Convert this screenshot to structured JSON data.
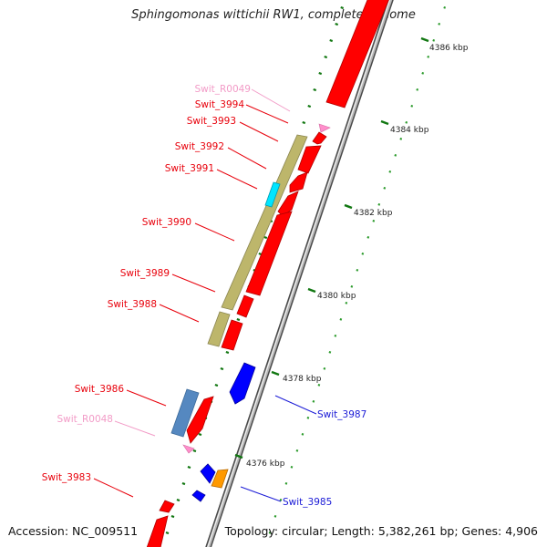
{
  "title": "Sphingomonas wittichii RW1, complete genome",
  "footer": {
    "accession_label": "Accession:",
    "accession": "NC_009511",
    "topology_text": "Topology: circular; Length: 5,382,261 bp; Genes: 4,906"
  },
  "scale_labels": [
    "4386 kbp",
    "4384 kbp",
    "4382 kbp",
    "4380 kbp",
    "4378 kbp",
    "4376 kbp"
  ],
  "gene_labels": [
    {
      "name": "Swit_R0049",
      "color": "#f29bc7"
    },
    {
      "name": "Swit_3994",
      "color": "#e8000b"
    },
    {
      "name": "Swit_3993",
      "color": "#e8000b"
    },
    {
      "name": "Swit_3992",
      "color": "#e8000b"
    },
    {
      "name": "Swit_3991",
      "color": "#e8000b"
    },
    {
      "name": "Swit_3990",
      "color": "#e8000b"
    },
    {
      "name": "Swit_3989",
      "color": "#e8000b"
    },
    {
      "name": "Swit_3988",
      "color": "#e8000b"
    },
    {
      "name": "Swit_3986",
      "color": "#e8000b"
    },
    {
      "name": "Swit_R0048",
      "color": "#f29bc7"
    },
    {
      "name": "Swit_3983",
      "color": "#e8000b"
    },
    {
      "name": "Swit_3987",
      "color": "#1a1ad6"
    },
    {
      "name": "Swit_3985",
      "color": "#1a1ad6"
    }
  ],
  "colors": {
    "gene_red": "#ff0000",
    "gene_blue": "#0000ff",
    "gene_pink": "#ff8ecb",
    "gene_orange": "#ff9900",
    "feature_olive": "#bdb66b",
    "feature_cyan": "#00e5ff",
    "feature_steelblue": "#5588c0",
    "backbone": "#8a8a8a",
    "tick_dark": "#117711",
    "tick_light": "#2a9a2a"
  }
}
